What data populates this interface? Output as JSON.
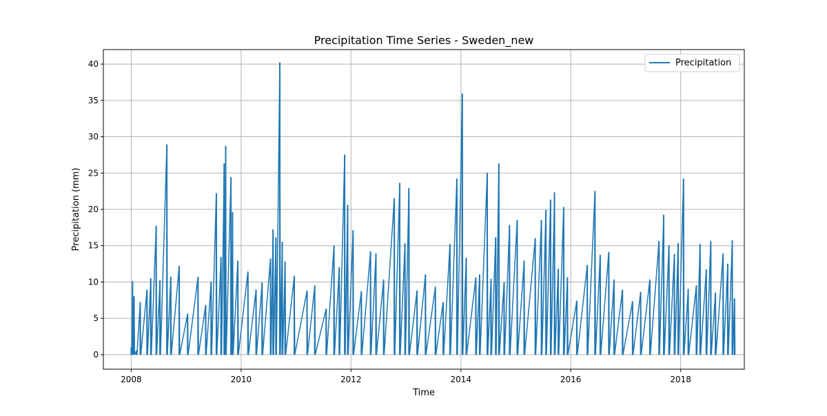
{
  "chart_data": {
    "type": "line",
    "title": "Precipitation Time Series - Sweden_new",
    "xlabel": "Time",
    "ylabel": "Precipitation (mm)",
    "xlim": [
      "2007-06-30",
      "2019-02-28"
    ],
    "ylim": [
      -2,
      42
    ],
    "xticks": [
      {
        "date": "2008-01-01",
        "label": "2008"
      },
      {
        "date": "2010-01-01",
        "label": "2010"
      },
      {
        "date": "2012-01-01",
        "label": "2012"
      },
      {
        "date": "2014-01-01",
        "label": "2014"
      },
      {
        "date": "2016-01-01",
        "label": "2016"
      },
      {
        "date": "2018-01-01",
        "label": "2018"
      }
    ],
    "yticks": [
      0,
      5,
      10,
      15,
      20,
      25,
      30,
      35,
      40
    ],
    "ytick_labels": [
      "0",
      "5",
      "10",
      "15",
      "20",
      "25",
      "30",
      "35",
      "40"
    ],
    "grid": true,
    "legend_position": "top-right",
    "color": "#1f77b4",
    "series": [
      {
        "name": "Precipitation",
        "points": [
          [
            "2008-01-01",
            1.0
          ],
          [
            "2008-01-10",
            10.1
          ],
          [
            "2008-01-20",
            8.0
          ],
          [
            "2008-02-05",
            0.5
          ],
          [
            "2008-03-01",
            7.2
          ],
          [
            "2008-04-15",
            8.9
          ],
          [
            "2008-05-10",
            10.5
          ],
          [
            "2008-06-15",
            17.7
          ],
          [
            "2008-07-10",
            10.2
          ],
          [
            "2008-08-25",
            28.9
          ],
          [
            "2008-09-20",
            10.7
          ],
          [
            "2008-11-15",
            12.2
          ],
          [
            "2009-01-10",
            5.6
          ],
          [
            "2009-03-20",
            10.7
          ],
          [
            "2009-05-10",
            6.8
          ],
          [
            "2009-06-15",
            10.0
          ],
          [
            "2009-07-20",
            22.2
          ],
          [
            "2009-08-20",
            13.4
          ],
          [
            "2009-09-10",
            26.3
          ],
          [
            "2009-09-20",
            28.7
          ],
          [
            "2009-10-25",
            24.4
          ],
          [
            "2009-11-05",
            19.6
          ],
          [
            "2009-12-10",
            12.9
          ],
          [
            "2010-02-15",
            11.4
          ],
          [
            "2010-04-10",
            8.9
          ],
          [
            "2010-05-20",
            9.9
          ],
          [
            "2010-07-15",
            13.2
          ],
          [
            "2010-08-01",
            17.2
          ],
          [
            "2010-08-20",
            16.1
          ],
          [
            "2010-09-15",
            40.2
          ],
          [
            "2010-10-01",
            15.5
          ],
          [
            "2010-10-20",
            12.8
          ],
          [
            "2010-12-20",
            10.8
          ],
          [
            "2011-03-15",
            8.8
          ],
          [
            "2011-05-05",
            9.5
          ],
          [
            "2011-07-20",
            6.3
          ],
          [
            "2011-09-10",
            15.0
          ],
          [
            "2011-10-15",
            12.0
          ],
          [
            "2011-11-20",
            27.5
          ],
          [
            "2011-12-10",
            20.6
          ],
          [
            "2012-01-15",
            17.1
          ],
          [
            "2012-03-10",
            8.7
          ],
          [
            "2012-05-10",
            14.2
          ],
          [
            "2012-06-15",
            13.9
          ],
          [
            "2012-08-05",
            10.3
          ],
          [
            "2012-10-15",
            21.5
          ],
          [
            "2012-11-20",
            23.6
          ],
          [
            "2012-12-25",
            15.3
          ],
          [
            "2013-01-20",
            22.9
          ],
          [
            "2013-03-15",
            8.8
          ],
          [
            "2013-05-10",
            11.0
          ],
          [
            "2013-07-15",
            9.3
          ],
          [
            "2013-09-05",
            7.2
          ],
          [
            "2013-10-20",
            15.2
          ],
          [
            "2013-12-05",
            24.2
          ],
          [
            "2014-01-10",
            35.9
          ],
          [
            "2014-02-05",
            13.3
          ],
          [
            "2014-04-10",
            10.6
          ],
          [
            "2014-05-05",
            11.0
          ],
          [
            "2014-06-25",
            25.0
          ],
          [
            "2014-07-20",
            10.4
          ],
          [
            "2014-08-20",
            16.1
          ],
          [
            "2014-09-10",
            26.3
          ],
          [
            "2014-10-15",
            9.9
          ],
          [
            "2014-11-20",
            17.8
          ],
          [
            "2015-01-10",
            18.5
          ],
          [
            "2015-02-25",
            12.9
          ],
          [
            "2015-05-10",
            16.0
          ],
          [
            "2015-06-20",
            18.5
          ],
          [
            "2015-07-20",
            19.9
          ],
          [
            "2015-08-20",
            21.3
          ],
          [
            "2015-09-15",
            22.3
          ],
          [
            "2015-10-10",
            11.8
          ],
          [
            "2015-11-15",
            20.3
          ],
          [
            "2015-12-10",
            10.6
          ],
          [
            "2016-02-10",
            7.4
          ],
          [
            "2016-04-20",
            12.3
          ],
          [
            "2016-06-10",
            22.5
          ],
          [
            "2016-07-15",
            13.7
          ],
          [
            "2016-09-10",
            14.1
          ],
          [
            "2016-10-15",
            10.3
          ],
          [
            "2016-12-10",
            8.9
          ],
          [
            "2017-02-15",
            7.3
          ],
          [
            "2017-04-10",
            8.6
          ],
          [
            "2017-06-10",
            10.3
          ],
          [
            "2017-08-10",
            15.6
          ],
          [
            "2017-09-10",
            19.2
          ],
          [
            "2017-10-15",
            15.0
          ],
          [
            "2017-11-20",
            13.8
          ],
          [
            "2017-12-15",
            15.3
          ],
          [
            "2018-01-20",
            24.2
          ],
          [
            "2018-02-20",
            9.0
          ],
          [
            "2018-04-15",
            9.5
          ],
          [
            "2018-05-10",
            15.2
          ],
          [
            "2018-06-20",
            11.7
          ],
          [
            "2018-07-20",
            15.6
          ],
          [
            "2018-08-20",
            8.5
          ],
          [
            "2018-10-10",
            13.9
          ],
          [
            "2018-11-10",
            12.5
          ],
          [
            "2018-12-10",
            15.7
          ],
          [
            "2018-12-25",
            7.7
          ]
        ]
      }
    ]
  }
}
